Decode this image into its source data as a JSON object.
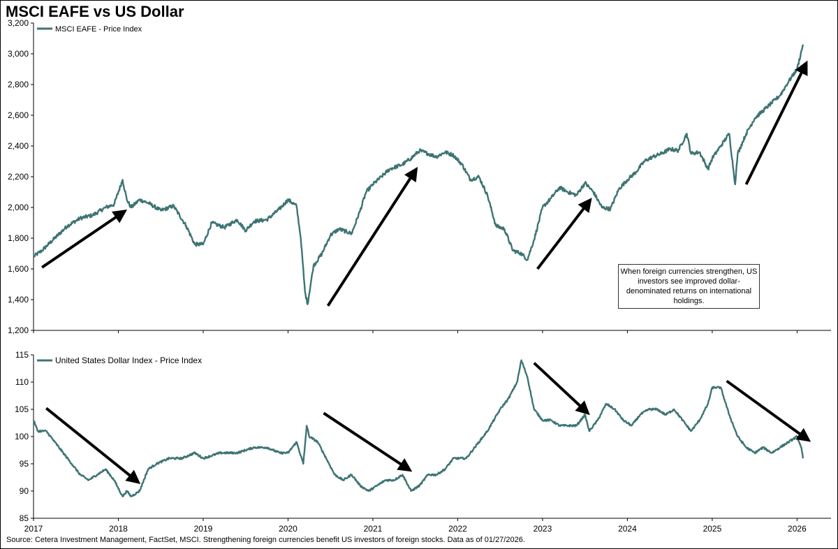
{
  "title": "MSCI EAFE vs US Dollar",
  "source": "Source: Cetera Investment Management, FactSet, MSCI. Strengthening foreign currencies benefit US investors of foreign stocks. Data as of 01/27/2026.",
  "callout": "When foreign currencies strengthen, US investors see improved dollar-denominated returns on international holdings.",
  "colors": {
    "series": "#3d7473",
    "arrow": "#000000"
  },
  "x_axis_labels": [
    "2017",
    "2018",
    "2019",
    "2020",
    "2021",
    "2022",
    "2023",
    "2024",
    "2025",
    "2026"
  ],
  "chart_data": [
    {
      "type": "line",
      "title": "MSCI EAFE vs US Dollar",
      "legend": "MSCI EAFE - Price Index",
      "legend_position": "top-left",
      "ylim": [
        1200,
        3200
      ],
      "yticks": [
        1200,
        1400,
        1600,
        1800,
        2000,
        2200,
        2400,
        2600,
        2800,
        3000,
        3200
      ],
      "ytick_labels": [
        "1,200",
        "1,400",
        "1,600",
        "1,800",
        "2,000",
        "2,200",
        "2,400",
        "2,600",
        "2,800",
        "3,000",
        "3,200"
      ],
      "grid": false,
      "series": [
        {
          "name": "MSCI EAFE - Price Index",
          "x": [
            2017.0,
            2017.1,
            2017.25,
            2017.4,
            2017.55,
            2017.7,
            2017.85,
            2017.95,
            2018.05,
            2018.1,
            2018.15,
            2018.25,
            2018.35,
            2018.5,
            2018.65,
            2018.8,
            2018.9,
            2019.0,
            2019.1,
            2019.25,
            2019.4,
            2019.5,
            2019.6,
            2019.75,
            2019.9,
            2020.0,
            2020.1,
            2020.15,
            2020.2,
            2020.23,
            2020.3,
            2020.4,
            2020.5,
            2020.6,
            2020.75,
            2020.85,
            2020.92,
            2021.0,
            2021.1,
            2021.2,
            2021.35,
            2021.45,
            2021.55,
            2021.65,
            2021.75,
            2021.85,
            2021.95,
            2022.05,
            2022.15,
            2022.25,
            2022.35,
            2022.45,
            2022.55,
            2022.65,
            2022.75,
            2022.82,
            2022.9,
            2023.0,
            2023.1,
            2023.2,
            2023.3,
            2023.4,
            2023.5,
            2023.6,
            2023.7,
            2023.8,
            2023.9,
            2024.0,
            2024.1,
            2024.2,
            2024.3,
            2024.4,
            2024.5,
            2024.6,
            2024.7,
            2024.75,
            2024.85,
            2024.95,
            2025.0,
            2025.1,
            2025.2,
            2025.27,
            2025.3,
            2025.4,
            2025.5,
            2025.6,
            2025.7,
            2025.8,
            2025.9,
            2026.0,
            2026.07
          ],
          "values": [
            1680,
            1720,
            1800,
            1880,
            1930,
            1950,
            2000,
            2020,
            2180,
            2050,
            2000,
            2050,
            2030,
            1980,
            2010,
            1880,
            1760,
            1760,
            1900,
            1870,
            1920,
            1850,
            1910,
            1920,
            1990,
            2050,
            2010,
            1800,
            1450,
            1370,
            1620,
            1700,
            1820,
            1860,
            1830,
            1980,
            2100,
            2150,
            2200,
            2250,
            2280,
            2320,
            2370,
            2350,
            2330,
            2360,
            2340,
            2280,
            2180,
            2200,
            2080,
            1880,
            1860,
            1720,
            1700,
            1660,
            1790,
            2000,
            2060,
            2130,
            2100,
            2080,
            2160,
            2100,
            2000,
            1990,
            2120,
            2180,
            2230,
            2300,
            2330,
            2350,
            2380,
            2370,
            2480,
            2350,
            2360,
            2250,
            2320,
            2400,
            2480,
            2150,
            2350,
            2480,
            2580,
            2630,
            2680,
            2730,
            2820,
            2900,
            3060
          ]
        }
      ],
      "annotations": [
        {
          "type": "arrow",
          "from": [
            2017.1,
            1610
          ],
          "to": [
            2018.06,
            1970
          ]
        },
        {
          "type": "arrow",
          "from": [
            2020.47,
            1360
          ],
          "to": [
            2021.5,
            2240
          ]
        },
        {
          "type": "arrow",
          "from": [
            2022.94,
            1600
          ],
          "to": [
            2023.55,
            2040
          ]
        },
        {
          "type": "arrow",
          "from": [
            2025.4,
            2150
          ],
          "to": [
            2026.1,
            2930
          ]
        }
      ]
    },
    {
      "type": "line",
      "legend": "United States Dollar Index - Price Index",
      "legend_position": "top-left",
      "ylim": [
        85,
        115
      ],
      "yticks": [
        85,
        90,
        95,
        100,
        105,
        110,
        115
      ],
      "ytick_labels": [
        "85",
        "90",
        "95",
        "100",
        "105",
        "110",
        "115"
      ],
      "grid": false,
      "series": [
        {
          "name": "United States Dollar Index - Price Index",
          "x": [
            2017.0,
            2017.05,
            2017.15,
            2017.25,
            2017.35,
            2017.45,
            2017.55,
            2017.65,
            2017.75,
            2017.85,
            2017.95,
            2018.05,
            2018.1,
            2018.15,
            2018.25,
            2018.35,
            2018.45,
            2018.6,
            2018.75,
            2018.9,
            2019.0,
            2019.2,
            2019.4,
            2019.6,
            2019.75,
            2019.9,
            2020.0,
            2020.1,
            2020.18,
            2020.22,
            2020.25,
            2020.35,
            2020.45,
            2020.55,
            2020.65,
            2020.75,
            2020.85,
            2020.95,
            2021.05,
            2021.15,
            2021.25,
            2021.35,
            2021.45,
            2021.55,
            2021.65,
            2021.75,
            2021.85,
            2021.95,
            2022.1,
            2022.25,
            2022.35,
            2022.5,
            2022.6,
            2022.7,
            2022.75,
            2022.82,
            2022.9,
            2023.0,
            2023.1,
            2023.2,
            2023.3,
            2023.4,
            2023.5,
            2023.55,
            2023.65,
            2023.75,
            2023.85,
            2023.95,
            2024.05,
            2024.15,
            2024.25,
            2024.35,
            2024.45,
            2024.55,
            2024.65,
            2024.75,
            2024.85,
            2024.95,
            2025.0,
            2025.1,
            2025.2,
            2025.3,
            2025.4,
            2025.5,
            2025.6,
            2025.7,
            2025.8,
            2025.9,
            2026.0,
            2026.05,
            2026.07
          ],
          "values": [
            103,
            101,
            101,
            99,
            97,
            95,
            93,
            92,
            93,
            94,
            92,
            89,
            90,
            89,
            90,
            94,
            95,
            96,
            96,
            97,
            96,
            97,
            97,
            98,
            98,
            97,
            97,
            99,
            95,
            102,
            100,
            99,
            96,
            93,
            92,
            93,
            91,
            90,
            91,
            92,
            92,
            93,
            90,
            91,
            93,
            93,
            94,
            96,
            96,
            99,
            101,
            105,
            107,
            110,
            114,
            111,
            105,
            103,
            103,
            102,
            102,
            102,
            104,
            101,
            103,
            106,
            105,
            103,
            102,
            104,
            105,
            105,
            104,
            105,
            103,
            101,
            103,
            106,
            109,
            109,
            104,
            100,
            98,
            97,
            98,
            97,
            98,
            99,
            100,
            98,
            96
          ]
        }
      ],
      "annotations": [
        {
          "type": "arrow",
          "from": [
            2017.15,
            105.2
          ],
          "to": [
            2018.22,
            91.8
          ]
        },
        {
          "type": "arrow",
          "from": [
            2020.42,
            104.3
          ],
          "to": [
            2021.42,
            94.0
          ]
        },
        {
          "type": "arrow",
          "from": [
            2022.9,
            113.5
          ],
          "to": [
            2023.52,
            104.5
          ]
        },
        {
          "type": "arrow",
          "from": [
            2025.17,
            110.2
          ],
          "to": [
            2026.12,
            99.5
          ]
        }
      ]
    }
  ]
}
